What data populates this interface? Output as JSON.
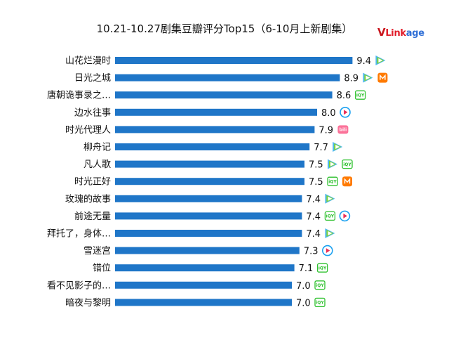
{
  "title": "10.21-10.27剧集豆瓣评分Top15（6-10月上新剧集）",
  "brand": {
    "v": "V",
    "link": "Link",
    "age": "age"
  },
  "colors": {
    "bar": "#1f76c8",
    "tencent": [
      "#4fb8f0",
      "#7bd23a",
      "#f6c21c"
    ],
    "iqiyi": "#2ec12e",
    "mango": "#ff7a00",
    "youku": "#1aa0f0",
    "bilibili": "#fb7299"
  },
  "chart_data": {
    "type": "bar",
    "orientation": "horizontal",
    "title": "10.21-10.27剧集豆瓣评分Top15（6-10月上新剧集）",
    "categories": [
      "山花烂漫时",
      "日光之城",
      "唐朝诡事录之…",
      "边水往事",
      "时光代理人",
      "柳舟记",
      "凡人歌",
      "时光正好",
      "玫瑰的故事",
      "前途无量",
      "拜托了，身体…",
      "雪迷宫",
      "错位",
      "看不见影子的…",
      "暗夜与黎明"
    ],
    "values": [
      9.4,
      8.9,
      8.6,
      8.0,
      7.9,
      7.7,
      7.5,
      7.5,
      7.4,
      7.4,
      7.4,
      7.3,
      7.1,
      7.0,
      7.0
    ],
    "value_labels": [
      "9.4",
      "8.9",
      "8.6",
      "8.0",
      "7.9",
      "7.7",
      "7.5",
      "7.5",
      "7.4",
      "7.4",
      "7.4",
      "7.3",
      "7.1",
      "7.0",
      "7.0"
    ],
    "platforms": [
      [
        "tencent"
      ],
      [
        "tencent",
        "mango"
      ],
      [
        "iqiyi"
      ],
      [
        "youku"
      ],
      [
        "bilibili"
      ],
      [
        "tencent"
      ],
      [
        "tencent",
        "iqiyi"
      ],
      [
        "iqiyi",
        "mango"
      ],
      [
        "tencent"
      ],
      [
        "iqiyi",
        "youku"
      ],
      [
        "tencent"
      ],
      [
        "youku"
      ],
      [
        "iqiyi"
      ],
      [
        "iqiyi"
      ],
      [
        "iqiyi"
      ]
    ],
    "xlim": [
      0,
      10
    ],
    "grid": false,
    "legend": "none"
  }
}
